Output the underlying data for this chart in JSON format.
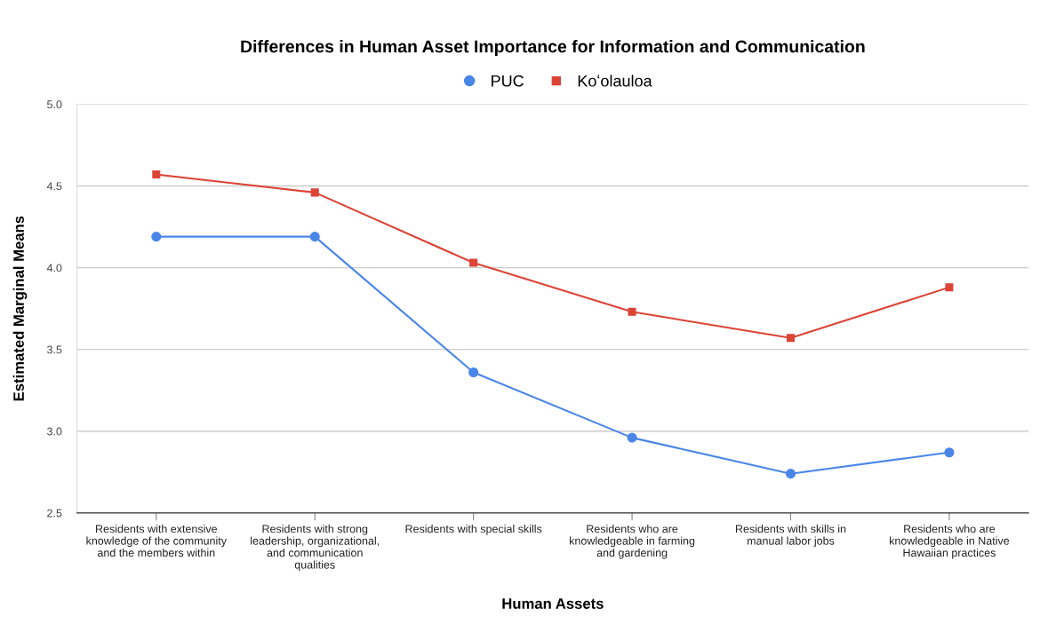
{
  "chart_data": {
    "type": "line",
    "title": "Differences in Human Asset Importance for Information and Communication",
    "xlabel": "Human Assets",
    "ylabel": "Estimated Marginal Means",
    "categories": [
      "Residents with extensive\nknowledge of the community\nand the members within",
      "Residents with strong\nleadership, organizational,\nand communication\nqualities",
      "Residents with special skills",
      "Residents who are\nknowledgeable in farming\nand gardening",
      "Residents with skills in\nmanual labor jobs",
      "Residents who are\nknowledgeable in Native\nHawaiian practices"
    ],
    "series": [
      {
        "name": "PUC",
        "color": "#4a86e8",
        "marker": "circle",
        "values": [
          4.19,
          4.19,
          3.36,
          2.96,
          2.74,
          2.87
        ]
      },
      {
        "name": "Koʻolauloa",
        "color": "#db4437",
        "marker": "square",
        "values": [
          4.57,
          4.46,
          4.03,
          3.73,
          3.57,
          3.88
        ]
      }
    ],
    "ylim": [
      2.5,
      5.0
    ],
    "yticks": [
      {
        "value": 2.5,
        "label": "2.5"
      },
      {
        "value": 3.0,
        "label": "3.0"
      },
      {
        "value": 3.5,
        "label": "3.5"
      },
      {
        "value": 4.0,
        "label": "4.0"
      },
      {
        "value": 4.5,
        "label": "4.5"
      },
      {
        "value": 5.0,
        "label": "5.0"
      }
    ],
    "grid": "y",
    "legend": "top"
  }
}
